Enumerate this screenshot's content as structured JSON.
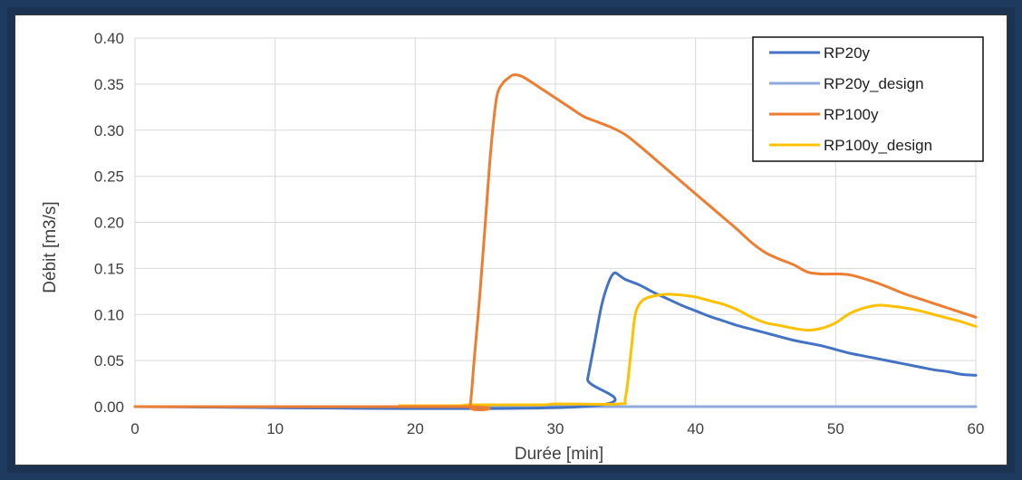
{
  "chart_data": {
    "type": "line",
    "xlabel": "Durée [min]",
    "ylabel": "Débit [m3/s]",
    "xlim": [
      0,
      60
    ],
    "ylim": [
      0,
      0.4
    ],
    "xticks": [
      "0",
      "10",
      "20",
      "30",
      "40",
      "50",
      "60"
    ],
    "yticks": [
      "0.00",
      "0.05",
      "0.10",
      "0.15",
      "0.20",
      "0.25",
      "0.30",
      "0.35",
      "0.40"
    ],
    "grid": true,
    "legend_position": "top-right",
    "series": [
      {
        "name": "RP20y",
        "color": "#4472c4",
        "points": [
          [
            0,
            0
          ],
          [
            31.9,
            0
          ],
          [
            32.3,
            0.03
          ],
          [
            32.8,
            0.07
          ],
          [
            33.3,
            0.11
          ],
          [
            33.8,
            0.135
          ],
          [
            34.2,
            0.145
          ],
          [
            34.6,
            0.142
          ],
          [
            35,
            0.138
          ],
          [
            36,
            0.132
          ],
          [
            37,
            0.124
          ],
          [
            38,
            0.117
          ],
          [
            39,
            0.11
          ],
          [
            40,
            0.104
          ],
          [
            41,
            0.098
          ],
          [
            42,
            0.093
          ],
          [
            43,
            0.088
          ],
          [
            44,
            0.084
          ],
          [
            45,
            0.08
          ],
          [
            46,
            0.076
          ],
          [
            47,
            0.072
          ],
          [
            48,
            0.069
          ],
          [
            49,
            0.066
          ],
          [
            50,
            0.062
          ],
          [
            51,
            0.058
          ],
          [
            52,
            0.055
          ],
          [
            53,
            0.052
          ],
          [
            54,
            0.049
          ],
          [
            55,
            0.046
          ],
          [
            56,
            0.043
          ],
          [
            57,
            0.04
          ],
          [
            58,
            0.038
          ],
          [
            59,
            0.035
          ],
          [
            60,
            0.034
          ]
        ]
      },
      {
        "name": "RP20y_design",
        "color": "#8eaadb",
        "points": [
          [
            0,
            0
          ],
          [
            60,
            0
          ]
        ]
      },
      {
        "name": "RP100y",
        "color": "#ed7d31",
        "points": [
          [
            0,
            0
          ],
          [
            23.5,
            0
          ],
          [
            23.9,
            0
          ],
          [
            24.2,
            0.05
          ],
          [
            24.6,
            0.12
          ],
          [
            25,
            0.2
          ],
          [
            25.4,
            0.28
          ],
          [
            25.8,
            0.335
          ],
          [
            26.2,
            0.35
          ],
          [
            26.6,
            0.356
          ],
          [
            27,
            0.36
          ],
          [
            27.5,
            0.359
          ],
          [
            28,
            0.355
          ],
          [
            29,
            0.345
          ],
          [
            30,
            0.335
          ],
          [
            31,
            0.325
          ],
          [
            32,
            0.315
          ],
          [
            33,
            0.309
          ],
          [
            34,
            0.303
          ],
          [
            35,
            0.295
          ],
          [
            36,
            0.283
          ],
          [
            37,
            0.27
          ],
          [
            38,
            0.257
          ],
          [
            39,
            0.244
          ],
          [
            40,
            0.231
          ],
          [
            41,
            0.218
          ],
          [
            42,
            0.205
          ],
          [
            43,
            0.192
          ],
          [
            44,
            0.178
          ],
          [
            45,
            0.167
          ],
          [
            46,
            0.16
          ],
          [
            47,
            0.154
          ],
          [
            48,
            0.146
          ],
          [
            49,
            0.144
          ],
          [
            50,
            0.144
          ],
          [
            51,
            0.143
          ],
          [
            52,
            0.139
          ],
          [
            53,
            0.134
          ],
          [
            54,
            0.128
          ],
          [
            55,
            0.122
          ],
          [
            56,
            0.117
          ],
          [
            57,
            0.112
          ],
          [
            58,
            0.107
          ],
          [
            59,
            0.102
          ],
          [
            60,
            0.097
          ]
        ]
      },
      {
        "name": "RP100y_design",
        "color": "#ffc000",
        "points": [
          [
            0,
            0
          ],
          [
            18,
            0
          ],
          [
            19,
            0.001
          ],
          [
            23,
            0.001
          ],
          [
            24,
            0.002
          ],
          [
            29,
            0.002
          ],
          [
            30,
            0.003
          ],
          [
            34.5,
            0.003
          ],
          [
            35,
            0.01
          ],
          [
            35.4,
            0.06
          ],
          [
            35.7,
            0.1
          ],
          [
            36.2,
            0.115
          ],
          [
            37,
            0.12
          ],
          [
            38,
            0.122
          ],
          [
            39,
            0.121
          ],
          [
            40,
            0.119
          ],
          [
            41,
            0.115
          ],
          [
            42,
            0.111
          ],
          [
            43,
            0.105
          ],
          [
            44,
            0.097
          ],
          [
            45,
            0.091
          ],
          [
            46,
            0.088
          ],
          [
            47,
            0.085
          ],
          [
            48,
            0.083
          ],
          [
            49,
            0.085
          ],
          [
            50,
            0.091
          ],
          [
            51,
            0.101
          ],
          [
            52,
            0.107
          ],
          [
            53,
            0.11
          ],
          [
            54,
            0.109
          ],
          [
            55,
            0.107
          ],
          [
            56,
            0.104
          ],
          [
            57,
            0.1
          ],
          [
            58,
            0.096
          ],
          [
            59,
            0.092
          ],
          [
            60,
            0.087
          ]
        ]
      }
    ]
  }
}
